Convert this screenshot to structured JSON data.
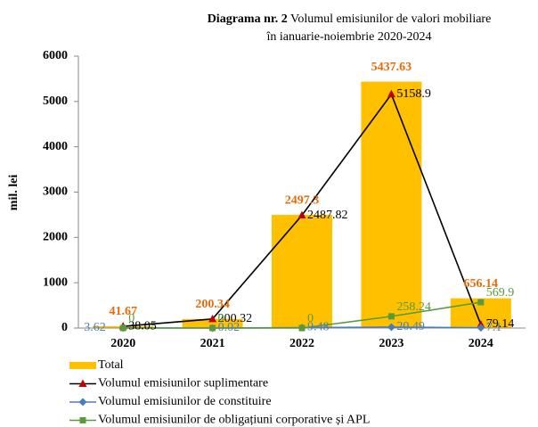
{
  "chart_data": {
    "type": "bar-line",
    "title": {
      "bold": "Diagrama nr. 2",
      "lines": [
        "Volumul emisiunilor de valori mobiliare",
        "în ianuarie-noiembrie 2020-2024"
      ]
    },
    "ylabel": "mil. lei",
    "categories": [
      "2020",
      "2021",
      "2022",
      "2023",
      "2024"
    ],
    "ylim": [
      0,
      6000
    ],
    "yticks": [
      0,
      1000,
      2000,
      3000,
      4000,
      5000,
      6000
    ],
    "series": [
      {
        "name": "Total",
        "type": "bar",
        "color": "#ffc000",
        "label_color": "#e46c0a",
        "values": [
          41.67,
          200.34,
          2497.3,
          5437.63,
          656.14
        ]
      },
      {
        "name": "Volumul emisiunilor suplimentare",
        "type": "line",
        "color": "#000000",
        "marker": "triangle",
        "marker_color": "#c00000",
        "label_color": "#000000",
        "values": [
          38.05,
          200.32,
          2487.82,
          5158.9,
          79.14
        ]
      },
      {
        "name": "Volumul emisiunilor de constituire",
        "type": "line",
        "color": "#4a7ebb",
        "marker": "diamond",
        "marker_color": "#4a7ebb",
        "label_color": "#4a7ebb",
        "values": [
          3.62,
          0.02,
          9.48,
          20.49,
          7.1
        ]
      },
      {
        "name": "Volumul emisiunilor de obligațiuni corporative și APL",
        "type": "line",
        "color": "#5a9a3a",
        "marker": "square",
        "marker_color": "#5a9a3a",
        "label_color": "#5a9a3a",
        "values": [
          0,
          0,
          0,
          258.24,
          569.9
        ]
      }
    ]
  }
}
